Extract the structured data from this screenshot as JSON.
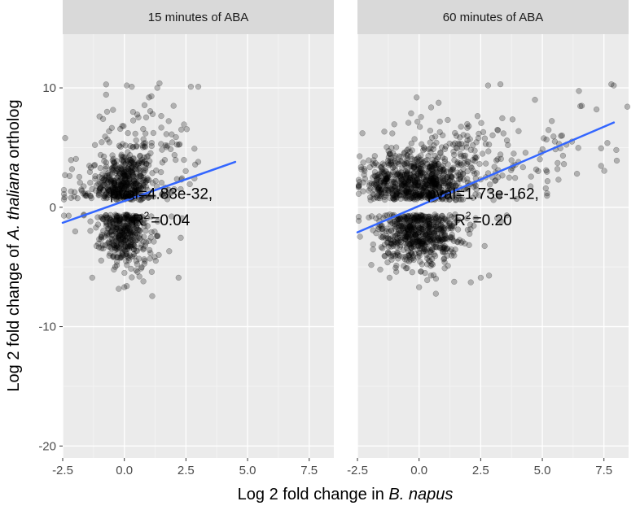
{
  "chart_data": {
    "type": "scatter",
    "xlabel_prefix": "Log 2 fold change in ",
    "xlabel_italic": "B. napus",
    "ylabel_prefix": "Log 2 fold change of ",
    "ylabel_italic": "A. thaliana",
    "ylabel_suffix": " ortholog",
    "xlim": [
      -2.5,
      8.5
    ],
    "ylim": [
      -21,
      14.5
    ],
    "x_ticks": [
      -2.5,
      0.0,
      2.5,
      5.0,
      7.5
    ],
    "x_tick_labels": [
      "-2.5",
      "0.0",
      "2.5",
      "5.0",
      "7.5"
    ],
    "y_ticks": [
      -20,
      -10,
      0,
      10
    ],
    "y_tick_labels": [
      "-20",
      "-10",
      "0",
      "10"
    ],
    "grid": true,
    "point_color": "#000000",
    "point_alpha": 0.25,
    "line_color": "#3366ff",
    "panels": [
      {
        "title": "15 minutes of ABA",
        "fit_line": {
          "x": [
            -2.5,
            4.5
          ],
          "y": [
            -1.3,
            3.8
          ]
        },
        "pval_text": "pval=4.83e-32,",
        "r2_label": "R",
        "r2_sup": "2",
        "r2_value": "=0.04",
        "annotation_x": 1.5,
        "pval_y": 0.7,
        "r2_y": -1.5,
        "clusters": [
          {
            "cx": 0.0,
            "cy": 2.0,
            "sx": 0.55,
            "sy": 1.3,
            "n": 420
          },
          {
            "cx": 0.0,
            "cy": -2.2,
            "sx": 0.45,
            "sy": 1.2,
            "n": 320
          },
          {
            "cx": 0.4,
            "cy": 5.0,
            "sx": 1.1,
            "sy": 2.2,
            "n": 80
          },
          {
            "cx": 0.3,
            "cy": -3.5,
            "sx": 0.9,
            "sy": 1.5,
            "n": 50
          },
          {
            "cx": -1.5,
            "cy": 1.5,
            "sx": 0.6,
            "sy": 1.5,
            "n": 40
          },
          {
            "cx": 1.8,
            "cy": 3.5,
            "sx": 0.8,
            "sy": 2.5,
            "n": 40
          }
        ],
        "extra_points": [
          [
            0.1,
            10.2
          ],
          [
            0.3,
            10.1
          ],
          [
            2.7,
            10.1
          ],
          [
            3.0,
            10.1
          ],
          [
            0.0,
            -6.7
          ],
          [
            0.1,
            -6.6
          ],
          [
            2.2,
            -5.9
          ],
          [
            -1.3,
            -5.9
          ],
          [
            3.0,
            3.8
          ],
          [
            -2.4,
            5.8
          ],
          [
            1.0,
            9.2
          ],
          [
            1.1,
            9.3
          ],
          [
            2.0,
            8.5
          ],
          [
            -0.7,
            8.0
          ]
        ]
      },
      {
        "title": "60 minutes of ABA",
        "fit_line": {
          "x": [
            -2.5,
            7.9
          ],
          "y": [
            -2.1,
            7.1
          ]
        },
        "pval_text": "pval=1.73e-162,",
        "r2_label": "R",
        "r2_sup": "2",
        "r2_value": "=0.20",
        "annotation_x": 2.6,
        "pval_y": 0.7,
        "r2_y": -1.5,
        "clusters": [
          {
            "cx": 0.0,
            "cy": 2.0,
            "sx": 1.0,
            "sy": 1.2,
            "n": 650
          },
          {
            "cx": 0.0,
            "cy": -2.2,
            "sx": 0.8,
            "sy": 1.1,
            "n": 500
          },
          {
            "cx": 1.5,
            "cy": 4.0,
            "sx": 1.6,
            "sy": 2.0,
            "n": 180
          },
          {
            "cx": 4.5,
            "cy": 4.5,
            "sx": 1.5,
            "sy": 1.8,
            "n": 60
          },
          {
            "cx": -1.5,
            "cy": 2.0,
            "sx": 0.6,
            "sy": 1.5,
            "n": 60
          },
          {
            "cx": 0.3,
            "cy": -4.0,
            "sx": 1.0,
            "sy": 1.3,
            "n": 60
          }
        ],
        "extra_points": [
          [
            7.8,
            10.3
          ],
          [
            7.9,
            10.2
          ],
          [
            8.0,
            4.8
          ],
          [
            6.6,
            8.5
          ],
          [
            7.2,
            8.2
          ],
          [
            3.3,
            10.3
          ],
          [
            2.8,
            10.2
          ],
          [
            -0.1,
            9.2
          ],
          [
            0.0,
            -6.7
          ],
          [
            2.5,
            -5.9
          ],
          [
            -1.2,
            -5.9
          ],
          [
            5.8,
            6.0
          ],
          [
            6.2,
            5.5
          ],
          [
            4.7,
            9.0
          ],
          [
            -2.3,
            6.2
          ]
        ]
      }
    ]
  }
}
